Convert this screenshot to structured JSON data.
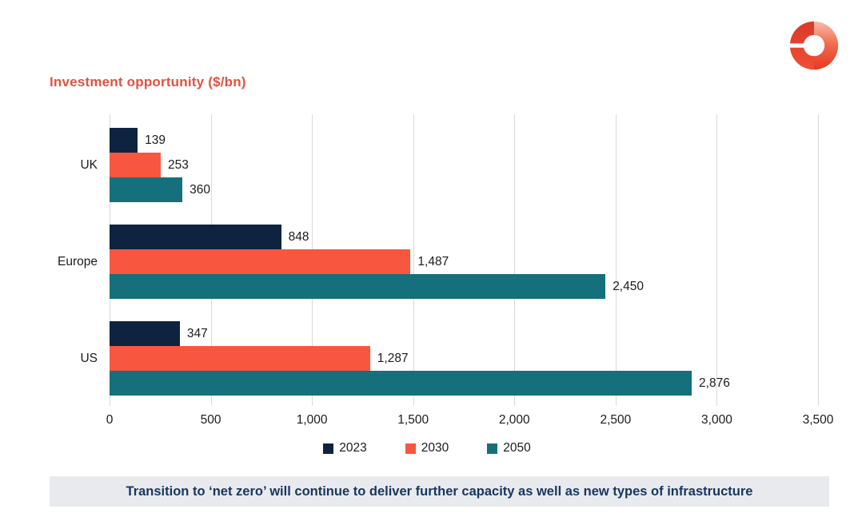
{
  "title": {
    "text": "Investment opportunity ($/bn)",
    "color": "#e05240"
  },
  "logo": {
    "name": "brand-donut-logo",
    "left_color": "#de3d2a",
    "right_gradient_top": "#f7bca9",
    "right_gradient_bottom": "#e63a22"
  },
  "chart_data": {
    "type": "bar",
    "orientation": "horizontal",
    "title": "Investment opportunity ($/bn)",
    "categories": [
      "UK",
      "Europe",
      "US"
    ],
    "series": [
      {
        "name": "2023",
        "color": "#0e2340",
        "values": [
          139,
          848,
          347
        ]
      },
      {
        "name": "2030",
        "color": "#f9563f",
        "values": [
          253,
          1487,
          1287
        ]
      },
      {
        "name": "2050",
        "color": "#15707c",
        "values": [
          360,
          2450,
          2876
        ]
      }
    ],
    "value_labels": [
      "139",
      "253",
      "360",
      "848",
      "1,487",
      "2,450",
      "347",
      "1,287",
      "2,876"
    ],
    "xlim": [
      0,
      3500
    ],
    "x_ticks": [
      0,
      500,
      1000,
      1500,
      2000,
      2500,
      3000,
      3500
    ],
    "x_tick_labels": [
      "0",
      "500",
      "1,000",
      "1,500",
      "2,000",
      "2,500",
      "3,000",
      "3,500"
    ],
    "grid": "vertical",
    "gridline_color": "#d9d9d9",
    "legend_position": "bottom",
    "value_label_position": "outside-end"
  },
  "banner": {
    "text": "Transition to ‘net zero’ will continue to deliver further capacity as well as new types of infrastructure",
    "background": "#e8eaed",
    "text_color": "#17365f"
  }
}
